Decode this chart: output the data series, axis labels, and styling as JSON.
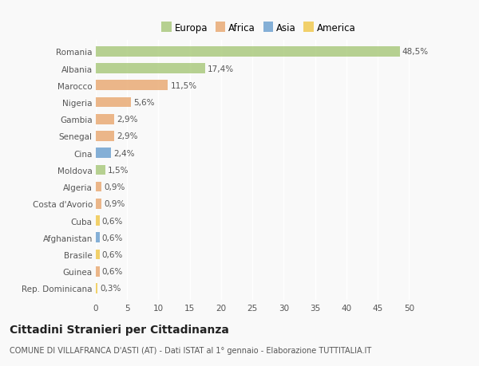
{
  "categories": [
    "Romania",
    "Albania",
    "Marocco",
    "Nigeria",
    "Gambia",
    "Senegal",
    "Cina",
    "Moldova",
    "Algeria",
    "Costa d'Avorio",
    "Cuba",
    "Afghanistan",
    "Brasile",
    "Guinea",
    "Rep. Dominicana"
  ],
  "values": [
    48.5,
    17.4,
    11.5,
    5.6,
    2.9,
    2.9,
    2.4,
    1.5,
    0.9,
    0.9,
    0.6,
    0.6,
    0.6,
    0.6,
    0.3
  ],
  "labels": [
    "48,5%",
    "17,4%",
    "11,5%",
    "5,6%",
    "2,9%",
    "2,9%",
    "2,4%",
    "1,5%",
    "0,9%",
    "0,9%",
    "0,6%",
    "0,6%",
    "0,6%",
    "0,6%",
    "0,3%"
  ],
  "colors": [
    "#a8c87a",
    "#a8c87a",
    "#e8a870",
    "#e8a870",
    "#e8a870",
    "#e8a870",
    "#6b9fcf",
    "#a8c87a",
    "#e8a870",
    "#e8a870",
    "#f0c84a",
    "#6b9fcf",
    "#f0c84a",
    "#e8a870",
    "#f0c84a"
  ],
  "legend_labels": [
    "Europa",
    "Africa",
    "Asia",
    "America"
  ],
  "legend_colors": [
    "#a8c87a",
    "#e8a870",
    "#6b9fcf",
    "#f0c84a"
  ],
  "xlim": [
    0,
    52
  ],
  "xticks": [
    0,
    5,
    10,
    15,
    20,
    25,
    30,
    35,
    40,
    45,
    50
  ],
  "title": "Cittadini Stranieri per Cittadinanza",
  "subtitle": "COMUNE DI VILLAFRANCA D'ASTI (AT) - Dati ISTAT al 1° gennaio - Elaborazione TUTTITALIA.IT",
  "bg_color": "#f9f9f9",
  "bar_height": 0.6,
  "label_fontsize": 7.5,
  "ytick_fontsize": 7.5,
  "xtick_fontsize": 7.5,
  "title_fontsize": 10,
  "subtitle_fontsize": 7,
  "legend_fontsize": 8.5
}
